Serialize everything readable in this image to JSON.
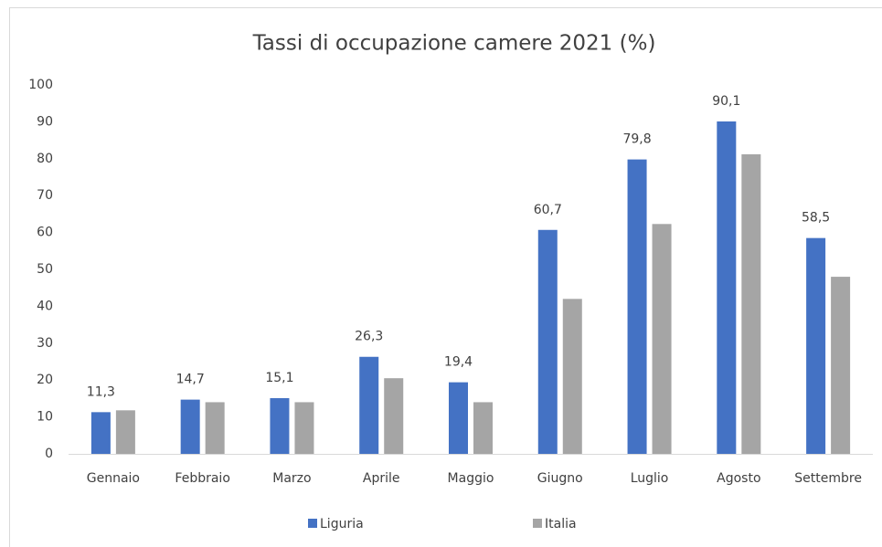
{
  "chart_data": {
    "type": "bar",
    "title": "Tassi di occupazione camere 2021 (%)",
    "categories": [
      "Gennaio",
      "Febbraio",
      "Marzo",
      "Aprile",
      "Maggio",
      "Giugno",
      "Luglio",
      "Agosto",
      "Settembre"
    ],
    "series": [
      {
        "name": "Liguria",
        "color": "#4472c4",
        "values": [
          11.3,
          14.7,
          15.1,
          26.3,
          19.4,
          60.7,
          79.8,
          90.1,
          58.5
        ],
        "value_labels": [
          "11,3",
          "14,7",
          "15,1",
          "26,3",
          "19,4",
          "60,7",
          "79,8",
          "90,1",
          "58,5"
        ]
      },
      {
        "name": "Italia",
        "color": "#a5a5a5",
        "values": [
          11.8,
          14,
          14,
          20.5,
          14,
          42,
          62.3,
          81.2,
          48
        ]
      }
    ],
    "ylim": [
      0,
      100
    ],
    "yticks": [
      0,
      10,
      20,
      30,
      40,
      50,
      60,
      70,
      80,
      90,
      100
    ],
    "grid": false,
    "legend": "bottom"
  }
}
